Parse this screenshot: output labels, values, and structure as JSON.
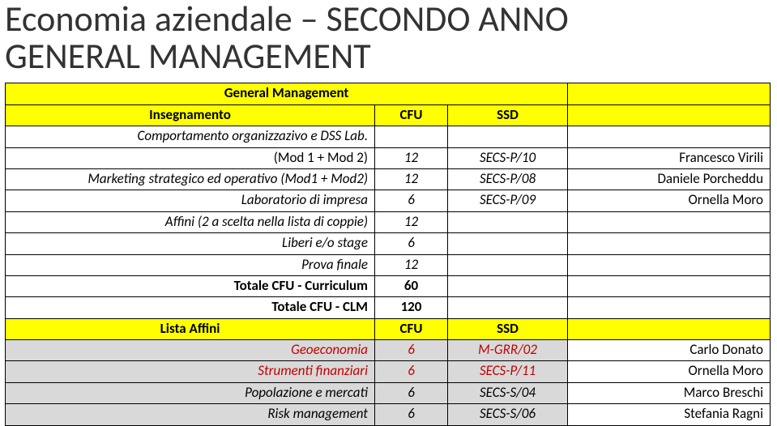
{
  "colors": {
    "header_bg": "#ffff00",
    "gray_bg": "#d9d9d9",
    "text": "#000000",
    "title": "#333333",
    "red": "#c00000",
    "border": "#000000"
  },
  "title_line1": "Economia aziendale – SECONDO ANNO",
  "title_line2": "GENERAL MANAGEMENT",
  "table": {
    "header": {
      "label": "General Management",
      "sub_header": [
        "Insegnamento",
        "CFU",
        "SSD"
      ]
    },
    "rows": [
      {
        "name": "Comportamento organizzazivo e DSS Lab.",
        "italic": true
      },
      {
        "name": "(Mod 1 + Mod 2)",
        "cfu": "12",
        "ssd": "SECS-P/10",
        "teacher": "Francesco Virili"
      },
      {
        "name": "Marketing strategico ed operativo (Mod1 + Mod2)",
        "cfu": "12",
        "ssd": "SECS-P/08",
        "teacher": "Daniele Porcheddu",
        "italic": true
      },
      {
        "name": "Laboratorio di impresa",
        "cfu": "6",
        "ssd": "SECS-P/09",
        "teacher": "Ornella Moro",
        "italic": true
      },
      {
        "name": "Affini (2 a scelta nella lista di coppie)",
        "cfu": "12",
        "italic": true
      },
      {
        "name": "Liberi e/o stage",
        "cfu": "6",
        "italic": true
      },
      {
        "name": "Prova finale",
        "cfu": "12",
        "italic": true
      },
      {
        "name": "Totale CFU - Curriculum",
        "cfu": "60",
        "bold": true
      },
      {
        "name": "Totale CFU - CLM",
        "cfu": "120",
        "bold": true
      }
    ],
    "affini_header": [
      "Lista Affini",
      "CFU",
      "SSD"
    ],
    "affini_rows": [
      {
        "name": "Geoeconomia",
        "cfu": "6",
        "ssd": "M-GRR/02",
        "teacher": "Carlo Donato"
      },
      {
        "name": "Strumenti finanziari",
        "cfu": "6",
        "ssd": "SECS-P/11",
        "teacher": "Ornella Moro"
      },
      {
        "name": "Popolazione e mercati",
        "cfu": "6",
        "ssd": "SECS-S/04",
        "teacher": "Marco Breschi"
      },
      {
        "name": "Risk management",
        "cfu": "6",
        "ssd": "SECS-S/06",
        "teacher": "Stefania Ragni"
      }
    ]
  }
}
